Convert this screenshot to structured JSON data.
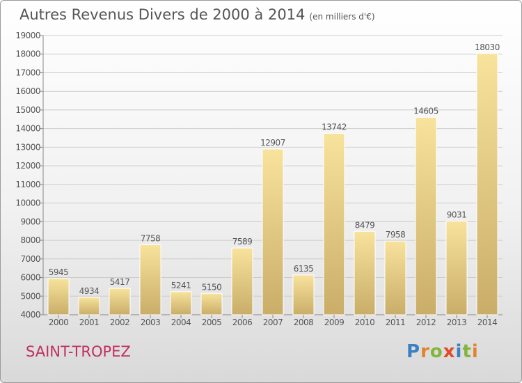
{
  "title": {
    "main": "Autres Revenus Divers de 2000 à 2014",
    "unit": "(en milliers d'€)"
  },
  "footer": {
    "commune": "SAINT-TROPEZ",
    "logo": "Proxiti"
  },
  "colors": {
    "bar_light": "#f8e39c",
    "bar_dark": "#c9ad68",
    "text": "#555555",
    "grid": "#cccccc",
    "commune": "#c0305c",
    "logo_letters": [
      "#3a80c2",
      "#e2832c",
      "#83b53a",
      "#e24a2b",
      "#3a80c2",
      "#83b53a",
      "#e2832c"
    ]
  },
  "chart_data": {
    "type": "bar",
    "title": "Autres Revenus Divers de 2000 à 2014",
    "subtitle": "(en milliers d'€)",
    "categories": [
      "2000",
      "2001",
      "2002",
      "2003",
      "2004",
      "2005",
      "2006",
      "2007",
      "2008",
      "2009",
      "2010",
      "2011",
      "2012",
      "2013",
      "2014"
    ],
    "values": [
      5945,
      4934,
      5417,
      7758,
      5241,
      5150,
      7589,
      12907,
      6135,
      13742,
      8479,
      7958,
      14605,
      9031,
      18030
    ],
    "ylim": [
      4000,
      19000
    ],
    "ytick_step": 1000,
    "grid": true,
    "data_labels": true
  }
}
